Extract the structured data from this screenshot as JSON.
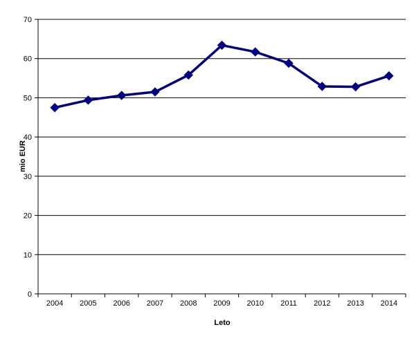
{
  "chart_data": {
    "type": "line",
    "title": "",
    "xlabel": "Leto",
    "ylabel": "mio EUR",
    "categories": [
      "2004",
      "2005",
      "2006",
      "2007",
      "2008",
      "2009",
      "2010",
      "2011",
      "2012",
      "2013",
      "2014"
    ],
    "series": [
      {
        "values": [
          47.5,
          49.4,
          50.6,
          51.5,
          55.8,
          63.4,
          61.7,
          58.8,
          52.9,
          52.8,
          55.6
        ],
        "color": "#000080",
        "marker": "diamond"
      }
    ],
    "ylim": [
      0,
      70
    ],
    "yticks": [
      0,
      10,
      20,
      30,
      40,
      50,
      60,
      70
    ],
    "grid": true,
    "legend": "none"
  }
}
